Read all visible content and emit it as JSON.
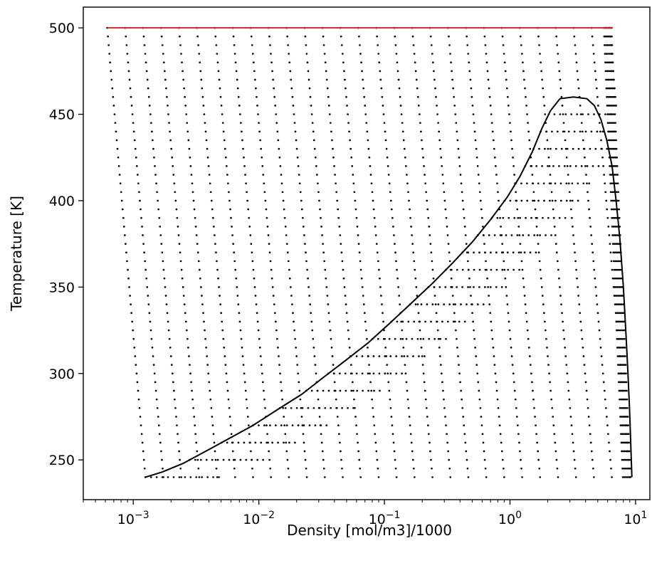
{
  "chart_data": {
    "type": "scatter",
    "title": "",
    "xlabel": "Density [mol/m3]/1000",
    "ylabel": "Temperature [K]",
    "xscale": "log",
    "xlim": [
      0.0004,
      13
    ],
    "ylim": [
      227,
      512
    ],
    "grid": false,
    "xtick_labels": [
      {
        "base": "10",
        "exp": "−3",
        "value": 0.001
      },
      {
        "base": "10",
        "exp": "−2",
        "value": 0.01
      },
      {
        "base": "10",
        "exp": "−1",
        "value": 0.1
      },
      {
        "base": "10",
        "exp": "0",
        "value": 1
      },
      {
        "base": "10",
        "exp": "1",
        "value": 10
      }
    ],
    "ytick_labels": [
      "250",
      "300",
      "350",
      "400",
      "450",
      "500"
    ],
    "ytick_values": [
      250,
      300,
      350,
      400,
      450,
      500
    ],
    "grid_points": {
      "temperatures_K": [
        240,
        245,
        250,
        255,
        260,
        265,
        270,
        275,
        280,
        285,
        290,
        295,
        300,
        305,
        310,
        315,
        320,
        325,
        330,
        335,
        340,
        345,
        350,
        355,
        360,
        365,
        370,
        375,
        380,
        385,
        390,
        395,
        400,
        405,
        410,
        415,
        420,
        425,
        430,
        435,
        440,
        445,
        450,
        455,
        460,
        465,
        470,
        475,
        480,
        485,
        490,
        495,
        500
      ],
      "min_density_at_240K": 0.00125,
      "min_density_at_500K": 0.00062,
      "max_density_at_240K": 9.35,
      "max_density_at_500K": 6.6,
      "points_per_decade": 7
    },
    "series": [
      {
        "type": "line",
        "color": "#000000",
        "points": [
          [
            0.00125,
            240
          ],
          [
            0.0017,
            243
          ],
          [
            0.0025,
            248
          ],
          [
            0.004,
            256
          ],
          [
            0.006,
            263
          ],
          [
            0.009,
            270
          ],
          [
            0.014,
            279
          ],
          [
            0.022,
            288
          ],
          [
            0.033,
            298
          ],
          [
            0.05,
            308
          ],
          [
            0.075,
            318
          ],
          [
            0.11,
            329
          ],
          [
            0.16,
            340
          ],
          [
            0.24,
            352
          ],
          [
            0.35,
            364
          ],
          [
            0.5,
            376
          ],
          [
            0.7,
            389
          ],
          [
            0.95,
            402
          ],
          [
            1.2,
            414
          ],
          [
            1.5,
            428
          ],
          [
            1.8,
            442
          ],
          [
            2.1,
            452
          ],
          [
            2.5,
            459
          ],
          [
            3.2,
            460
          ],
          [
            4.1,
            459
          ],
          [
            4.7,
            455
          ],
          [
            5.3,
            447
          ],
          [
            5.9,
            435
          ],
          [
            6.5,
            420
          ],
          [
            7.0,
            400
          ],
          [
            7.5,
            378
          ],
          [
            8.0,
            350
          ],
          [
            8.4,
            322
          ],
          [
            8.7,
            300
          ],
          [
            8.95,
            280
          ],
          [
            9.15,
            260
          ],
          [
            9.3,
            245
          ],
          [
            9.35,
            240
          ]
        ]
      },
      {
        "type": "line",
        "color": "#d62728",
        "points": [
          [
            0.00062,
            500
          ],
          [
            6.6,
            500
          ]
        ]
      }
    ]
  }
}
